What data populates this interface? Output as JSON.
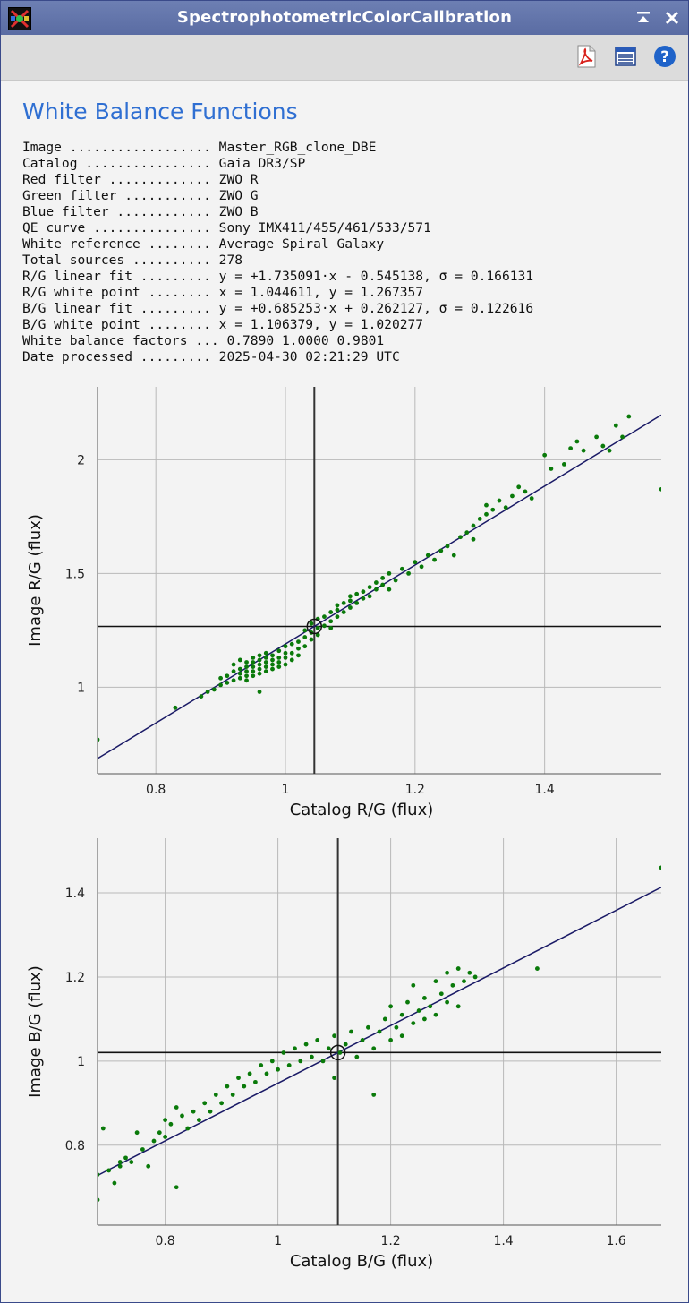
{
  "window": {
    "title": "SpectrophotometricColorCalibration"
  },
  "toolbar": {
    "icons": [
      "pdf-icon",
      "document-icon",
      "help-icon"
    ]
  },
  "report": {
    "heading": "White Balance Functions",
    "rows": [
      {
        "label": "Image ..................",
        "value": "Master_RGB_clone_DBE"
      },
      {
        "label": "Catalog ................",
        "value": "Gaia DR3/SP"
      },
      {
        "label": "Red filter .............",
        "value": "ZWO R"
      },
      {
        "label": "Green filter ...........",
        "value": "ZWO G"
      },
      {
        "label": "Blue filter ............",
        "value": "ZWO B"
      },
      {
        "label": "QE curve ...............",
        "value": "Sony IMX411/455/461/533/571"
      },
      {
        "label": "White reference ........",
        "value": "Average Spiral Galaxy"
      },
      {
        "label": "Total sources ..........",
        "value": "278"
      },
      {
        "label": "R/G linear fit .........",
        "value": "y = +1.735091·x - 0.545138, σ = 0.166131"
      },
      {
        "label": "R/G white point ........",
        "value": "x = 1.044611, y = 1.267357"
      },
      {
        "label": "B/G linear fit .........",
        "value": "y = +0.685253·x + 0.262127, σ = 0.122616"
      },
      {
        "label": "B/G white point ........",
        "value": "x = 1.106379, y = 1.020277"
      },
      {
        "label": "White balance factors ...",
        "value": "0.7890 1.0000 0.9801"
      },
      {
        "label": "Date processed .........",
        "value": "2025-04-30 02:21:29 UTC"
      }
    ]
  },
  "colors": {
    "heading": "#2f6fd2",
    "points": "#0a7a0a",
    "fit_line": "#1a1a66",
    "white_point": "#111111",
    "grid": "#b8b8b8"
  },
  "chart_data": [
    {
      "type": "scatter",
      "xlabel": "Catalog R/G (flux)",
      "ylabel": "Image R/G (flux)",
      "xlim": [
        0.71,
        1.58
      ],
      "ylim": [
        0.62,
        2.32
      ],
      "xticks": [
        0.8,
        1,
        1.2,
        1.4
      ],
      "yticks": [
        1,
        1.5,
        2
      ],
      "tick_labels_x": [
        "0.8",
        "1",
        "1.2",
        "1.4"
      ],
      "tick_labels_y": [
        "1",
        "1.5",
        "2"
      ],
      "grid": true,
      "fit": {
        "slope": 1.735091,
        "intercept": -0.545138
      },
      "white_point": {
        "x": 1.044611,
        "y": 1.267357
      },
      "points": [
        [
          0.71,
          0.77
        ],
        [
          0.83,
          0.91
        ],
        [
          0.87,
          0.96
        ],
        [
          0.88,
          0.98
        ],
        [
          0.89,
          0.99
        ],
        [
          0.9,
          1.01
        ],
        [
          0.9,
          1.04
        ],
        [
          0.91,
          1.02
        ],
        [
          0.91,
          1.05
        ],
        [
          0.92,
          1.03
        ],
        [
          0.92,
          1.07
        ],
        [
          0.92,
          1.1
        ],
        [
          0.93,
          1.04
        ],
        [
          0.93,
          1.06
        ],
        [
          0.93,
          1.08
        ],
        [
          0.93,
          1.12
        ],
        [
          0.94,
          1.03
        ],
        [
          0.94,
          1.05
        ],
        [
          0.94,
          1.07
        ],
        [
          0.94,
          1.09
        ],
        [
          0.94,
          1.11
        ],
        [
          0.95,
          1.05
        ],
        [
          0.95,
          1.07
        ],
        [
          0.95,
          1.09
        ],
        [
          0.95,
          1.11
        ],
        [
          0.95,
          1.13
        ],
        [
          0.96,
          1.06
        ],
        [
          0.96,
          1.08
        ],
        [
          0.96,
          1.1
        ],
        [
          0.96,
          1.12
        ],
        [
          0.96,
          1.14
        ],
        [
          0.96,
          0.98
        ],
        [
          0.97,
          1.07
        ],
        [
          0.97,
          1.09
        ],
        [
          0.97,
          1.11
        ],
        [
          0.97,
          1.13
        ],
        [
          0.97,
          1.15
        ],
        [
          0.98,
          1.08
        ],
        [
          0.98,
          1.1
        ],
        [
          0.98,
          1.12
        ],
        [
          0.98,
          1.14
        ],
        [
          0.99,
          1.09
        ],
        [
          0.99,
          1.11
        ],
        [
          0.99,
          1.13
        ],
        [
          0.99,
          1.16
        ],
        [
          1.0,
          1.1
        ],
        [
          1.0,
          1.13
        ],
        [
          1.0,
          1.15
        ],
        [
          1.0,
          1.18
        ],
        [
          1.01,
          1.12
        ],
        [
          1.01,
          1.15
        ],
        [
          1.01,
          1.19
        ],
        [
          1.02,
          1.14
        ],
        [
          1.02,
          1.17
        ],
        [
          1.02,
          1.2
        ],
        [
          1.03,
          1.18
        ],
        [
          1.03,
          1.22
        ],
        [
          1.03,
          1.25
        ],
        [
          1.04,
          1.21
        ],
        [
          1.04,
          1.24
        ],
        [
          1.04,
          1.28
        ],
        [
          1.05,
          1.23
        ],
        [
          1.05,
          1.26
        ],
        [
          1.05,
          1.3
        ],
        [
          1.06,
          1.27
        ],
        [
          1.06,
          1.31
        ],
        [
          1.07,
          1.29
        ],
        [
          1.07,
          1.33
        ],
        [
          1.07,
          1.26
        ],
        [
          1.08,
          1.31
        ],
        [
          1.08,
          1.34
        ],
        [
          1.08,
          1.36
        ],
        [
          1.09,
          1.33
        ],
        [
          1.09,
          1.37
        ],
        [
          1.1,
          1.35
        ],
        [
          1.1,
          1.38
        ],
        [
          1.1,
          1.4
        ],
        [
          1.11,
          1.37
        ],
        [
          1.11,
          1.41
        ],
        [
          1.12,
          1.39
        ],
        [
          1.12,
          1.42
        ],
        [
          1.13,
          1.4
        ],
        [
          1.13,
          1.44
        ],
        [
          1.14,
          1.43
        ],
        [
          1.14,
          1.46
        ],
        [
          1.15,
          1.45
        ],
        [
          1.15,
          1.48
        ],
        [
          1.16,
          1.43
        ],
        [
          1.16,
          1.5
        ],
        [
          1.17,
          1.47
        ],
        [
          1.18,
          1.52
        ],
        [
          1.19,
          1.5
        ],
        [
          1.2,
          1.55
        ],
        [
          1.21,
          1.53
        ],
        [
          1.22,
          1.58
        ],
        [
          1.23,
          1.56
        ],
        [
          1.24,
          1.6
        ],
        [
          1.25,
          1.62
        ],
        [
          1.26,
          1.58
        ],
        [
          1.27,
          1.66
        ],
        [
          1.28,
          1.68
        ],
        [
          1.29,
          1.71
        ],
        [
          1.29,
          1.65
        ],
        [
          1.3,
          1.74
        ],
        [
          1.31,
          1.76
        ],
        [
          1.31,
          1.8
        ],
        [
          1.32,
          1.78
        ],
        [
          1.33,
          1.82
        ],
        [
          1.34,
          1.79
        ],
        [
          1.35,
          1.84
        ],
        [
          1.36,
          1.88
        ],
        [
          1.37,
          1.86
        ],
        [
          1.38,
          1.83
        ],
        [
          1.4,
          2.02
        ],
        [
          1.41,
          1.96
        ],
        [
          1.43,
          1.98
        ],
        [
          1.44,
          2.05
        ],
        [
          1.45,
          2.08
        ],
        [
          1.46,
          2.04
        ],
        [
          1.48,
          2.1
        ],
        [
          1.49,
          2.06
        ],
        [
          1.5,
          2.04
        ],
        [
          1.51,
          2.15
        ],
        [
          1.52,
          2.1
        ],
        [
          1.53,
          2.19
        ],
        [
          1.58,
          1.87
        ]
      ]
    },
    {
      "type": "scatter",
      "xlabel": "Catalog B/G (flux)",
      "ylabel": "Image B/G (flux)",
      "xlim": [
        0.68,
        1.68
      ],
      "ylim": [
        0.61,
        1.53
      ],
      "xticks": [
        0.8,
        1,
        1.2,
        1.4,
        1.6
      ],
      "yticks": [
        0.8,
        1,
        1.2,
        1.4
      ],
      "tick_labels_x": [
        "0.8",
        "1",
        "1.2",
        "1.4",
        "1.6"
      ],
      "tick_labels_y": [
        "0.8",
        "1",
        "1.2",
        "1.4"
      ],
      "grid": true,
      "fit": {
        "slope": 0.685253,
        "intercept": 0.262127
      },
      "white_point": {
        "x": 1.106379,
        "y": 1.020277
      },
      "points": [
        [
          0.68,
          0.67
        ],
        [
          0.68,
          0.73
        ],
        [
          0.69,
          0.84
        ],
        [
          0.7,
          0.74
        ],
        [
          0.71,
          0.71
        ],
        [
          0.72,
          0.75
        ],
        [
          0.72,
          0.76
        ],
        [
          0.73,
          0.77
        ],
        [
          0.74,
          0.76
        ],
        [
          0.75,
          0.83
        ],
        [
          0.76,
          0.79
        ],
        [
          0.77,
          0.75
        ],
        [
          0.78,
          0.81
        ],
        [
          0.79,
          0.83
        ],
        [
          0.8,
          0.82
        ],
        [
          0.8,
          0.86
        ],
        [
          0.81,
          0.85
        ],
        [
          0.82,
          0.89
        ],
        [
          0.82,
          0.7
        ],
        [
          0.83,
          0.87
        ],
        [
          0.84,
          0.84
        ],
        [
          0.85,
          0.88
        ],
        [
          0.86,
          0.86
        ],
        [
          0.87,
          0.9
        ],
        [
          0.88,
          0.88
        ],
        [
          0.89,
          0.92
        ],
        [
          0.9,
          0.9
        ],
        [
          0.91,
          0.94
        ],
        [
          0.92,
          0.92
        ],
        [
          0.93,
          0.96
        ],
        [
          0.94,
          0.94
        ],
        [
          0.95,
          0.97
        ],
        [
          0.96,
          0.95
        ],
        [
          0.97,
          0.99
        ],
        [
          0.98,
          0.97
        ],
        [
          0.99,
          1.0
        ],
        [
          1.0,
          0.98
        ],
        [
          1.01,
          1.02
        ],
        [
          1.02,
          0.99
        ],
        [
          1.03,
          1.03
        ],
        [
          1.04,
          1.0
        ],
        [
          1.05,
          1.04
        ],
        [
          1.06,
          1.01
        ],
        [
          1.07,
          1.05
        ],
        [
          1.08,
          1.0
        ],
        [
          1.09,
          1.03
        ],
        [
          1.1,
          0.96
        ],
        [
          1.1,
          1.06
        ],
        [
          1.11,
          1.02
        ],
        [
          1.12,
          1.04
        ],
        [
          1.13,
          1.07
        ],
        [
          1.14,
          1.01
        ],
        [
          1.15,
          1.05
        ],
        [
          1.16,
          1.08
        ],
        [
          1.17,
          1.03
        ],
        [
          1.17,
          0.92
        ],
        [
          1.18,
          1.07
        ],
        [
          1.19,
          1.1
        ],
        [
          1.2,
          1.05
        ],
        [
          1.2,
          1.13
        ],
        [
          1.21,
          1.08
        ],
        [
          1.22,
          1.11
        ],
        [
          1.22,
          1.06
        ],
        [
          1.23,
          1.14
        ],
        [
          1.24,
          1.09
        ],
        [
          1.24,
          1.18
        ],
        [
          1.25,
          1.12
        ],
        [
          1.26,
          1.1
        ],
        [
          1.26,
          1.15
        ],
        [
          1.27,
          1.13
        ],
        [
          1.28,
          1.19
        ],
        [
          1.28,
          1.11
        ],
        [
          1.29,
          1.16
        ],
        [
          1.3,
          1.14
        ],
        [
          1.3,
          1.21
        ],
        [
          1.31,
          1.18
        ],
        [
          1.32,
          1.13
        ],
        [
          1.32,
          1.22
        ],
        [
          1.33,
          1.19
        ],
        [
          1.34,
          1.21
        ],
        [
          1.35,
          1.2
        ],
        [
          1.46,
          1.22
        ],
        [
          1.68,
          1.46
        ]
      ]
    }
  ]
}
